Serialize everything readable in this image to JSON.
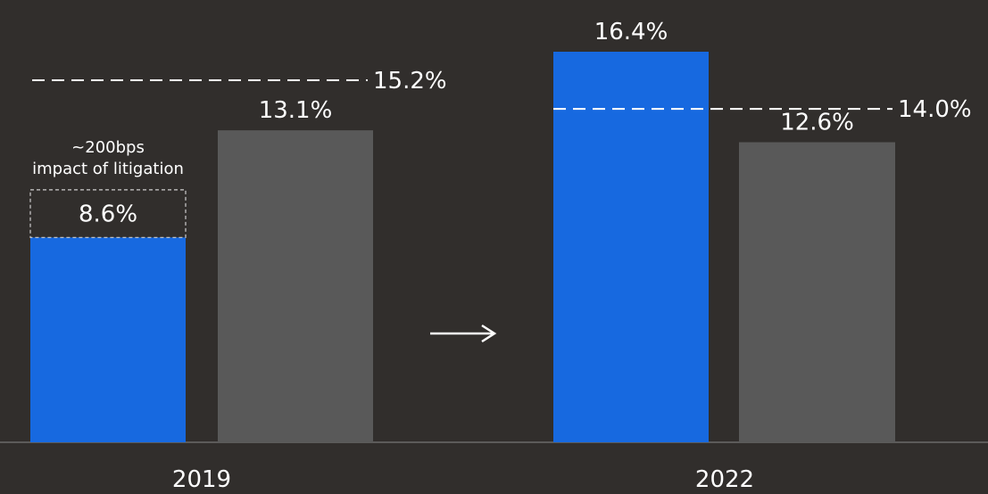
{
  "chart_data": {
    "type": "bar",
    "categories": [
      "2019",
      "2022"
    ],
    "series": [
      {
        "values": [
          8.6,
          16.4
        ],
        "color": "#1769e0"
      },
      {
        "values": [
          13.1,
          12.6
        ],
        "color": "#595959"
      }
    ],
    "value_labels": [
      [
        "8.6%",
        "16.4%"
      ],
      [
        "13.1%",
        "12.6%"
      ]
    ],
    "reference_lines": [
      {
        "category": "2019",
        "value": 15.2,
        "label": "15.2%"
      },
      {
        "category": "2022",
        "value": 14.0,
        "label": "14.0%"
      }
    ],
    "adjustment": {
      "category": "2019",
      "from": 8.6,
      "to": 10.6,
      "annotation": [
        "~200bps",
        "impact of litigation"
      ]
    },
    "ylim": [
      0,
      16.4
    ],
    "grid": false,
    "colors": {
      "background": "#312e2c",
      "axis": "#6a6a6a",
      "text": "#ffffff",
      "dashed": "#ffffff"
    },
    "arrow_icon": "right-arrow-icon"
  }
}
